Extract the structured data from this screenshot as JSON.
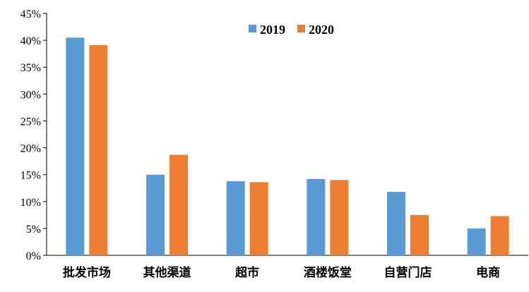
{
  "chart_data": {
    "type": "bar",
    "title": "",
    "xlabel": "",
    "ylabel": "",
    "categories": [
      "批发市场",
      "其他渠道",
      "超市",
      "酒楼饭堂",
      "自营门店",
      "电商"
    ],
    "series": [
      {
        "name": "2019",
        "color": "#5B9BD5",
        "values": [
          40.5,
          15.0,
          13.8,
          14.2,
          11.8,
          5.0
        ]
      },
      {
        "name": "2020",
        "color": "#ED7D31",
        "values": [
          39.1,
          18.7,
          13.6,
          14.0,
          7.5,
          7.3
        ]
      }
    ],
    "ylim": [
      0,
      45
    ],
    "yticks": [
      "0%",
      "5%",
      "10%",
      "15%",
      "20%",
      "25%",
      "30%",
      "35%",
      "40%",
      "45%"
    ],
    "ytick_step": 5,
    "grid": false,
    "legend_position": "top-center"
  }
}
